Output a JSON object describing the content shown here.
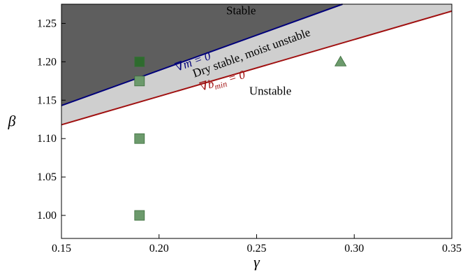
{
  "chart_data": {
    "type": "scatter",
    "xlabel": "γ",
    "ylabel": "β",
    "xlim": [
      0.15,
      0.35
    ],
    "ylim": [
      0.97,
      1.275
    ],
    "x_ticks": [
      0.15,
      0.2,
      0.25,
      0.3,
      0.35
    ],
    "x_tick_labels": [
      "0.15",
      "0.20",
      "0.25",
      "0.30",
      "0.35"
    ],
    "y_ticks": [
      1.0,
      1.05,
      1.1,
      1.15,
      1.2,
      1.25
    ],
    "y_tick_labels": [
      "1.00",
      "1.05",
      "1.10",
      "1.15",
      "1.20",
      "1.25"
    ],
    "grid": false,
    "boundaries": [
      {
        "id": "grad-m",
        "label": "∇m = 0",
        "color": "#00007a",
        "x": [
          0.15,
          0.294
        ],
        "y": [
          1.143,
          1.275
        ]
      },
      {
        "id": "grad-bmin",
        "label_base": "∇b",
        "label_sub": "min",
        "label_suffix": " = 0",
        "color": "#a01010",
        "x": [
          0.15,
          0.35
        ],
        "y": [
          1.118,
          1.266
        ]
      }
    ],
    "regions": [
      {
        "id": "stable",
        "label": "Stable",
        "color": "#5e5e5e",
        "label_x": 0.242,
        "label_y": 1.262
      },
      {
        "id": "dry-stable",
        "label": "Dry stable, moist unstable",
        "color": "#cfcfcf",
        "label_x": 0.248,
        "label_y": 1.207
      },
      {
        "id": "unstable",
        "label": "Unstable",
        "color": "#ffffff",
        "label_x": 0.257,
        "label_y": 1.157
      }
    ],
    "series": [
      {
        "marker": "square",
        "color": "#2e6b2e",
        "points": [
          [
            0.19,
            1.2
          ]
        ]
      },
      {
        "marker": "square",
        "color": "#6c9a6c",
        "points": [
          [
            0.19,
            1.175
          ],
          [
            0.19,
            1.1
          ],
          [
            0.19,
            1.0
          ]
        ]
      },
      {
        "marker": "triangle",
        "color": "#6c9a6c",
        "points": [
          [
            0.293,
            1.2
          ]
        ]
      }
    ]
  }
}
